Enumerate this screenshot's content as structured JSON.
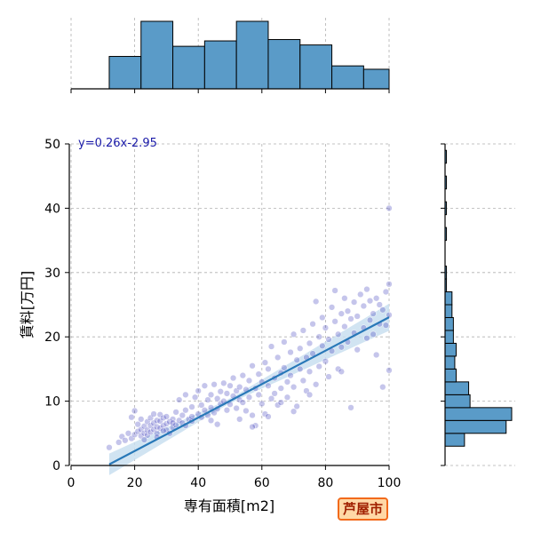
{
  "colors": {
    "hist_fill": "#5a9bc8",
    "hist_edge": "#000000",
    "point": "#2d2db8",
    "fit_line": "#2878b8",
    "ci_band": "#c9dff0",
    "grid": "#b0b0b0",
    "equation": "#1a1aa8",
    "badge_border": "#f26a1b",
    "badge_fill": "#ffd8a6",
    "badge_text": "#a02000"
  },
  "badge": {
    "text": "芦屋市"
  },
  "chart_data": {
    "type": "scatter",
    "xlabel": "専有面積[m2]",
    "ylabel": "賃料[万円]",
    "xlim": [
      0,
      100
    ],
    "ylim": [
      0,
      50
    ],
    "xticks": [
      0,
      20,
      40,
      60,
      80,
      100
    ],
    "yticks": [
      0,
      10,
      20,
      30,
      40,
      50
    ],
    "grid": true,
    "annotation": "y=0.26x-2.95",
    "regression": {
      "slope": 0.26,
      "intercept": -2.95,
      "x_range": [
        12,
        100
      ]
    },
    "top_histogram": {
      "bin_edges": [
        0,
        12,
        22,
        32,
        42,
        52,
        62,
        72,
        82,
        92,
        100
      ],
      "counts": [
        0,
        48,
        100,
        63,
        71,
        100,
        73,
        65,
        34,
        29
      ]
    },
    "right_histogram": {
      "bin_edges": [
        3,
        5,
        7,
        9,
        11,
        13,
        15,
        17,
        19,
        21,
        23,
        25,
        27,
        29,
        31,
        33,
        35,
        37,
        39,
        41,
        43,
        45,
        47,
        49
      ],
      "counts": [
        14,
        44,
        48,
        18,
        17,
        8,
        7,
        8,
        6,
        6,
        5,
        5,
        1,
        1,
        0,
        0,
        1,
        0,
        1,
        0,
        1,
        0,
        1
      ]
    },
    "points": [
      [
        12,
        2.8
      ],
      [
        15,
        3.6
      ],
      [
        16,
        4.5
      ],
      [
        17,
        3.9
      ],
      [
        18,
        5.0
      ],
      [
        19,
        4.2
      ],
      [
        19,
        7.5
      ],
      [
        20,
        4.8
      ],
      [
        20,
        8.5
      ],
      [
        21,
        5.3
      ],
      [
        21,
        6.4
      ],
      [
        22,
        4.6
      ],
      [
        22,
        5.6
      ],
      [
        22,
        7.2
      ],
      [
        23,
        5.0
      ],
      [
        23,
        6.1
      ],
      [
        24,
        4.7
      ],
      [
        24,
        5.5
      ],
      [
        24,
        6.8
      ],
      [
        25,
        5.2
      ],
      [
        25,
        6.2
      ],
      [
        25,
        7.4
      ],
      [
        26,
        5.6
      ],
      [
        26,
        6.6
      ],
      [
        26,
        8.0
      ],
      [
        27,
        5.0
      ],
      [
        27,
        6.0
      ],
      [
        27,
        7.0
      ],
      [
        28,
        5.8
      ],
      [
        28,
        6.9
      ],
      [
        28,
        7.9
      ],
      [
        29,
        6.2
      ],
      [
        29,
        7.4
      ],
      [
        30,
        5.5
      ],
      [
        30,
        6.5
      ],
      [
        30,
        7.6
      ],
      [
        31,
        6.8
      ],
      [
        32,
        7.2
      ],
      [
        32,
        5.9
      ],
      [
        33,
        6.3
      ],
      [
        33,
        8.3
      ],
      [
        34,
        7.0
      ],
      [
        34,
        10.2
      ],
      [
        35,
        6.6
      ],
      [
        35,
        7.8
      ],
      [
        36,
        8.6
      ],
      [
        36,
        11.0
      ],
      [
        37,
        7.2
      ],
      [
        38,
        9.1
      ],
      [
        38,
        6.9
      ],
      [
        39,
        10.6
      ],
      [
        40,
        8.0
      ],
      [
        40,
        11.6
      ],
      [
        41,
        7.5
      ],
      [
        41,
        9.4
      ],
      [
        42,
        8.6
      ],
      [
        42,
        12.4
      ],
      [
        43,
        10.2
      ],
      [
        43,
        7.8
      ],
      [
        44,
        11.0
      ],
      [
        44,
        9.0
      ],
      [
        45,
        8.2
      ],
      [
        45,
        12.6
      ],
      [
        46,
        10.4
      ],
      [
        46,
        8.8
      ],
      [
        47,
        11.5
      ],
      [
        47,
        9.6
      ],
      [
        48,
        12.8
      ],
      [
        48,
        10.0
      ],
      [
        49,
        8.6
      ],
      [
        49,
        11.2
      ],
      [
        50,
        12.4
      ],
      [
        50,
        9.5
      ],
      [
        51,
        10.8
      ],
      [
        51,
        13.6
      ],
      [
        52,
        8.9
      ],
      [
        52,
        11.6
      ],
      [
        53,
        12.2
      ],
      [
        53,
        10.2
      ],
      [
        54,
        14.0
      ],
      [
        54,
        9.8
      ],
      [
        55,
        11.8
      ],
      [
        55,
        8.5
      ],
      [
        56,
        13.2
      ],
      [
        56,
        10.6
      ],
      [
        57,
        15.5
      ],
      [
        57,
        7.8
      ],
      [
        58,
        6.2
      ],
      [
        58,
        12.0
      ],
      [
        59,
        11.0
      ],
      [
        59,
        14.2
      ],
      [
        60,
        9.6
      ],
      [
        60,
        13.0
      ],
      [
        61,
        16.0
      ],
      [
        61,
        8.0
      ],
      [
        62,
        12.4
      ],
      [
        62,
        15.0
      ],
      [
        63,
        10.4
      ],
      [
        63,
        18.5
      ],
      [
        64,
        13.6
      ],
      [
        64,
        11.2
      ],
      [
        65,
        16.8
      ],
      [
        65,
        9.4
      ],
      [
        66,
        14.4
      ],
      [
        66,
        12.0
      ],
      [
        67,
        19.2
      ],
      [
        67,
        15.2
      ],
      [
        68,
        13.0
      ],
      [
        68,
        10.6
      ],
      [
        69,
        17.6
      ],
      [
        69,
        14.0
      ],
      [
        70,
        12.2
      ],
      [
        70,
        20.4
      ],
      [
        71,
        16.4
      ],
      [
        71,
        9.2
      ],
      [
        72,
        15.0
      ],
      [
        72,
        18.2
      ],
      [
        73,
        13.2
      ],
      [
        73,
        21.0
      ],
      [
        74,
        16.8
      ],
      [
        74,
        11.6
      ],
      [
        75,
        19.0
      ],
      [
        75,
        14.6
      ],
      [
        76,
        22.0
      ],
      [
        76,
        17.4
      ],
      [
        77,
        12.6
      ],
      [
        77,
        25.5
      ],
      [
        78,
        20.0
      ],
      [
        78,
        15.4
      ],
      [
        79,
        18.6
      ],
      [
        79,
        23.0
      ],
      [
        80,
        16.2
      ],
      [
        80,
        21.4
      ],
      [
        81,
        19.6
      ],
      [
        81,
        13.8
      ],
      [
        82,
        24.6
      ],
      [
        82,
        17.8
      ],
      [
        83,
        22.4
      ],
      [
        83,
        27.2
      ],
      [
        84,
        20.4
      ],
      [
        84,
        15.0
      ],
      [
        85,
        23.6
      ],
      [
        85,
        18.4
      ],
      [
        86,
        21.6
      ],
      [
        86,
        26.0
      ],
      [
        87,
        19.2
      ],
      [
        87,
        24.0
      ],
      [
        88,
        22.8
      ],
      [
        88,
        9.0
      ],
      [
        89,
        25.4
      ],
      [
        89,
        20.6
      ],
      [
        90,
        18.0
      ],
      [
        90,
        23.2
      ],
      [
        91,
        26.6
      ],
      [
        92,
        21.4
      ],
      [
        92,
        24.8
      ],
      [
        93,
        19.8
      ],
      [
        93,
        27.4
      ],
      [
        94,
        22.6
      ],
      [
        94,
        25.6
      ],
      [
        95,
        20.4
      ],
      [
        95,
        23.6
      ],
      [
        96,
        26.0
      ],
      [
        96,
        17.2
      ],
      [
        97,
        22.0
      ],
      [
        97,
        25.0
      ],
      [
        98,
        24.2
      ],
      [
        98,
        12.2
      ],
      [
        99,
        27.0
      ],
      [
        99,
        21.8
      ],
      [
        100,
        23.4
      ],
      [
        100,
        40.0
      ],
      [
        100,
        28.2
      ],
      [
        100,
        14.8
      ],
      [
        57,
        6.0
      ],
      [
        46,
        6.4
      ],
      [
        36,
        6.2
      ],
      [
        31,
        5.0
      ],
      [
        27,
        4.4
      ],
      [
        23,
        4.0
      ],
      [
        62,
        7.6
      ],
      [
        70,
        8.4
      ],
      [
        75,
        11.0
      ],
      [
        85,
        14.6
      ],
      [
        66,
        9.8
      ],
      [
        53,
        7.2
      ],
      [
        44,
        7.0
      ],
      [
        38,
        7.6
      ],
      [
        32,
        6.6
      ],
      [
        29,
        5.4
      ]
    ]
  }
}
